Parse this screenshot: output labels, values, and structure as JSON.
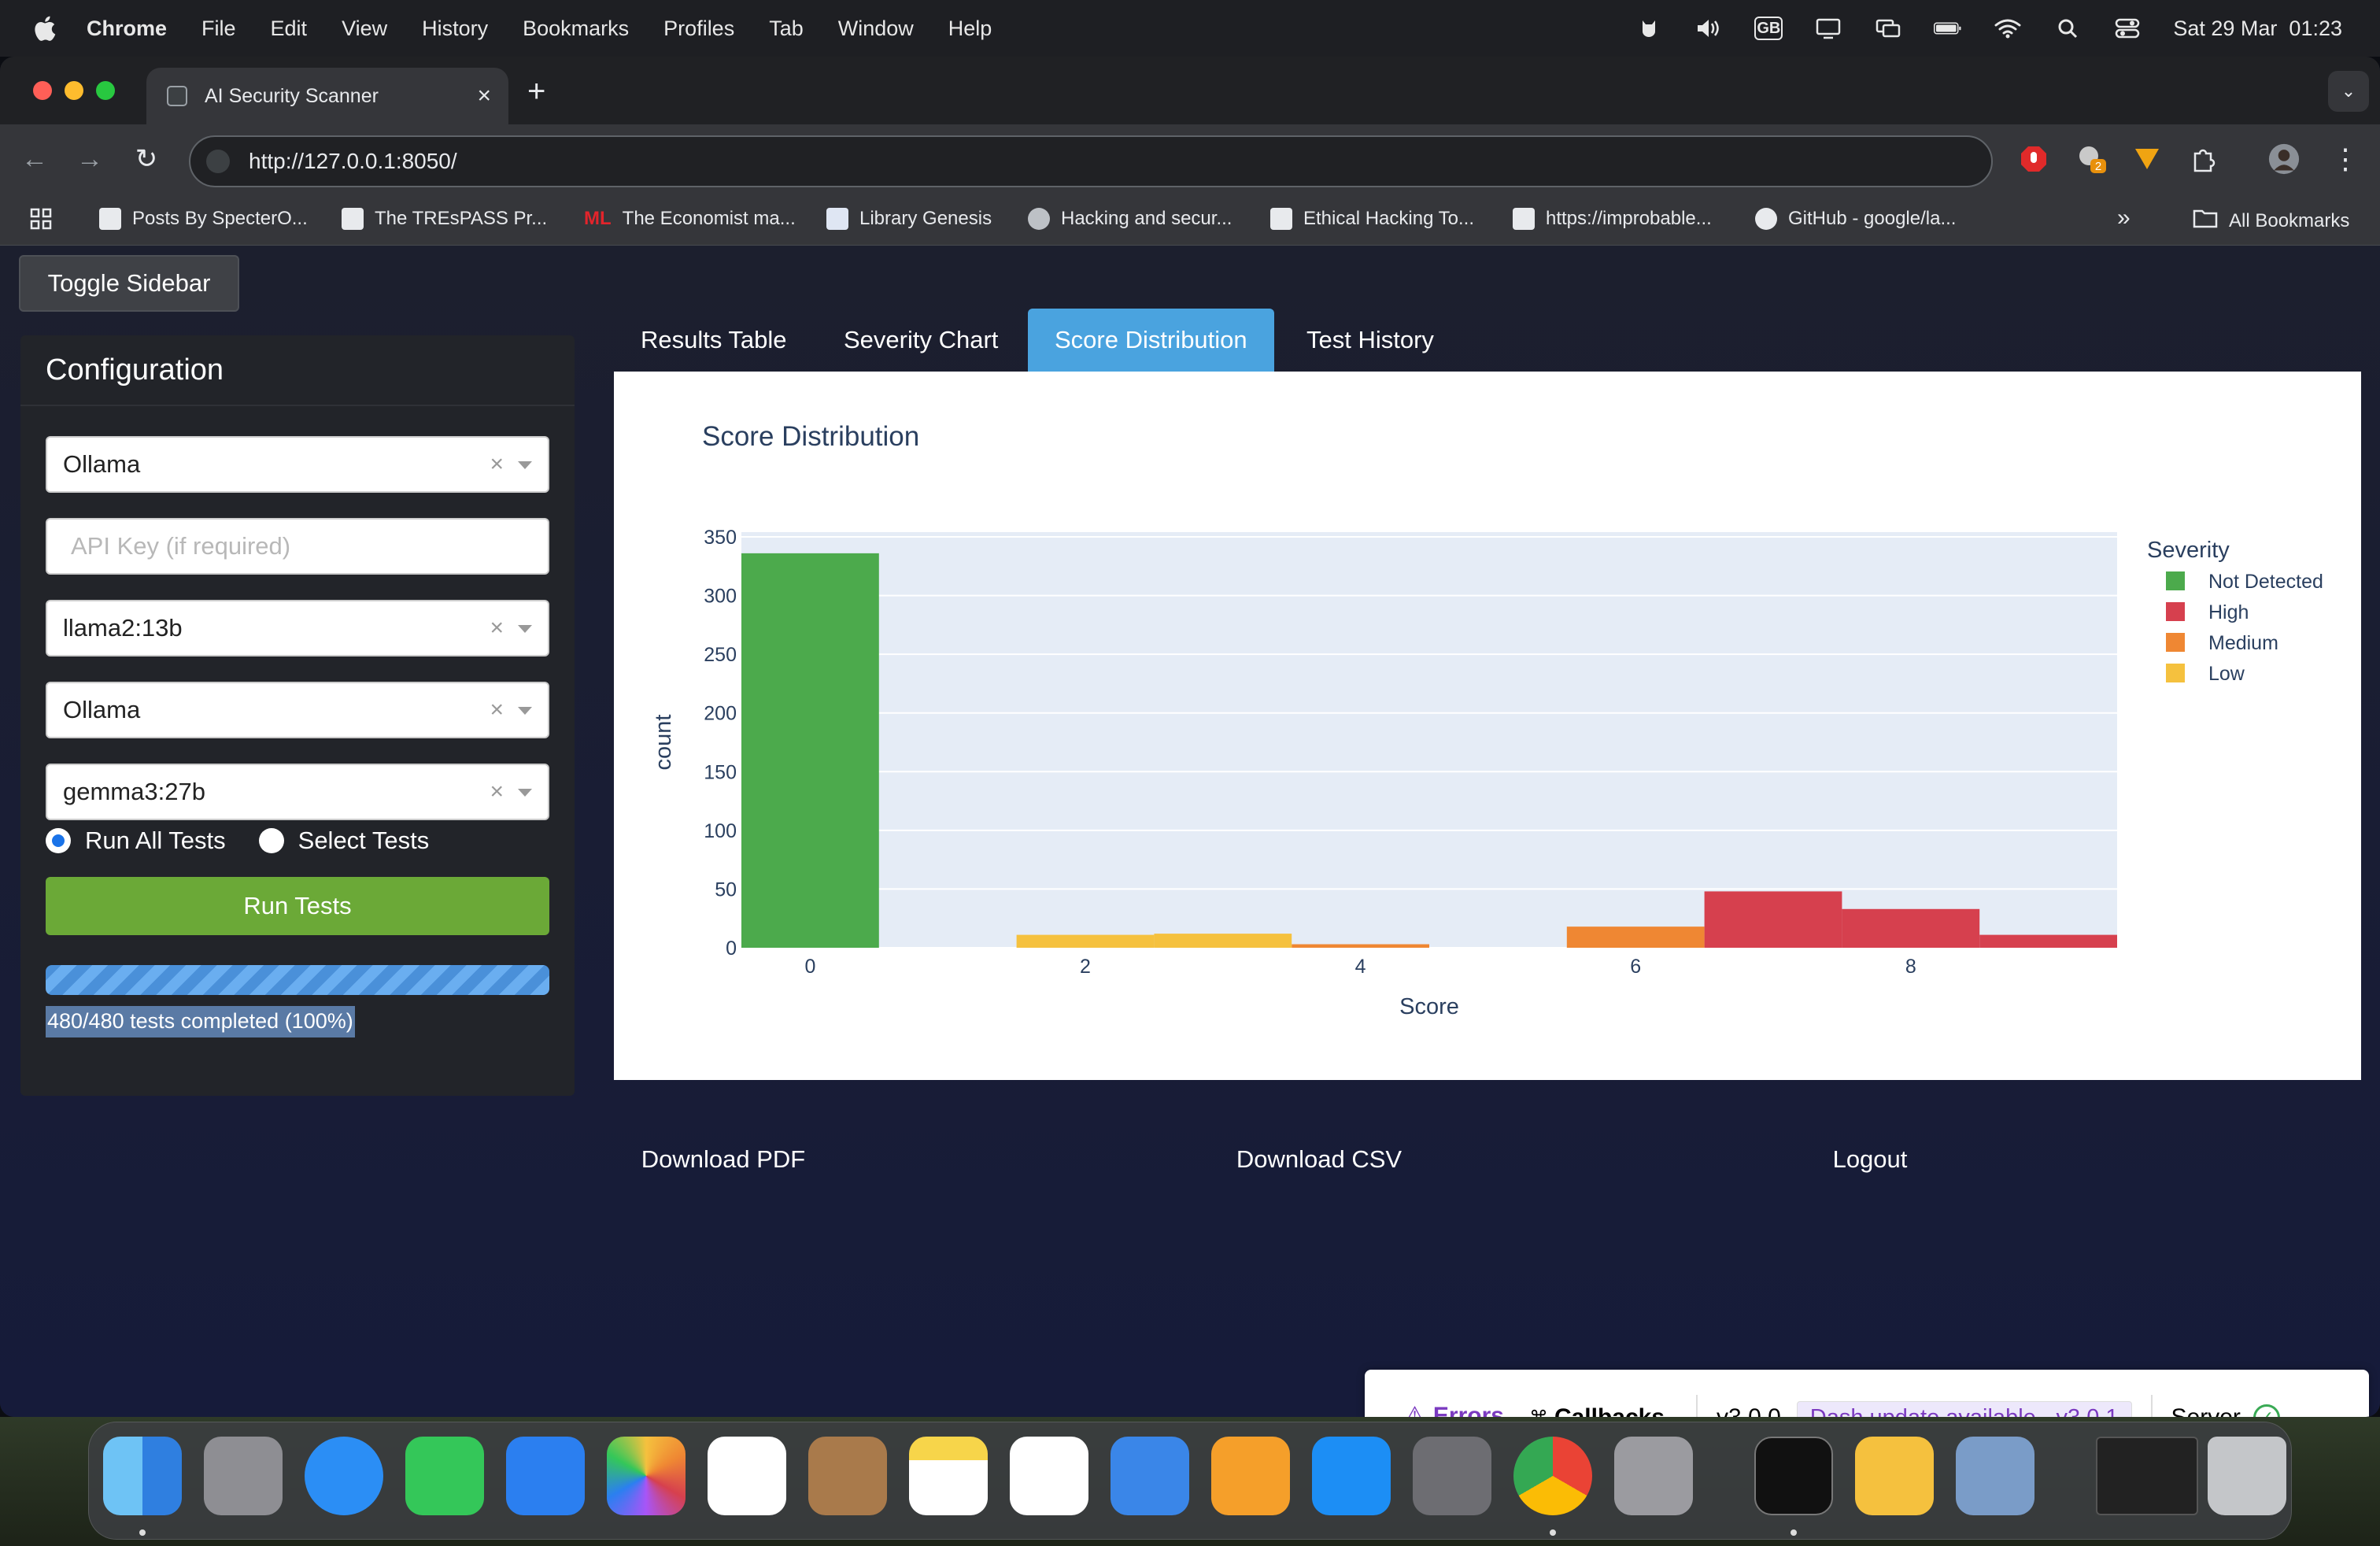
{
  "menubar": {
    "app_name": "Chrome",
    "items": [
      "File",
      "Edit",
      "View",
      "History",
      "Bookmarks",
      "Profiles",
      "Tab",
      "Window",
      "Help"
    ],
    "keyboard": "GB",
    "datetime": "Sat 29 Mar  01:23"
  },
  "browser": {
    "tab_title": "AI Security Scanner",
    "url": "http://127.0.0.1:8050/",
    "extension_badge": "2",
    "bookmarks": [
      "Posts By SpecterO...",
      "The TREsPASS Pr...",
      "The Economist ma...",
      "Library Genesis",
      "Hacking and secur...",
      "Ethical Hacking To...",
      "https://improbable...",
      "GitHub - google/la..."
    ],
    "economist_prefix": "ML",
    "overflow": "»",
    "all_bookmarks": "All Bookmarks"
  },
  "app": {
    "toggle_sidebar": "Toggle Sidebar",
    "sidebar": {
      "title": "Configuration",
      "provider_1": "Ollama",
      "api_key_placeholder": "API Key (if required)",
      "model_1": "llama2:13b",
      "provider_2": "Ollama",
      "model_2": "gemma3:27b",
      "radio_all": "Run All Tests",
      "radio_select": "Select Tests",
      "run_button": "Run Tests",
      "progress_value": 1.0,
      "progress_text": "480/480 tests completed (100%)"
    },
    "tabs": [
      "Results Table",
      "Severity Chart",
      "Score Distribution",
      "Test History"
    ],
    "active_tab": "Score Distribution",
    "buttons": {
      "download_pdf": "Download PDF",
      "download_csv": "Download CSV",
      "logout": "Logout"
    },
    "colors": {
      "pdf": "#4aa3df",
      "csv": "#8e33c9",
      "logout": "#c5251c",
      "run": "#6ba937"
    }
  },
  "chart_data": {
    "type": "bar",
    "title": "Score Distribution",
    "xlabel": "Score",
    "ylabel": "count",
    "xlim": [
      -0.5,
      9.5
    ],
    "ylim": [
      0,
      350
    ],
    "xticks": [
      0,
      2,
      4,
      6,
      8
    ],
    "yticks": [
      0,
      50,
      100,
      150,
      200,
      250,
      300,
      350
    ],
    "bin_width": 1,
    "legend_title": "Severity",
    "legend_position": "right",
    "grid": true,
    "series": [
      {
        "name": "Not Detected",
        "color": "#4caa4c",
        "x": [
          0
        ],
        "values": [
          336
        ]
      },
      {
        "name": "High",
        "color": "#d6404e",
        "x": [
          7,
          8,
          9
        ],
        "values": [
          48,
          33,
          11
        ]
      },
      {
        "name": "Medium",
        "color": "#ef8733",
        "x": [
          4,
          6
        ],
        "values": [
          3,
          18
        ]
      },
      {
        "name": "Low",
        "color": "#f5c13e",
        "x": [
          2,
          3
        ],
        "values": [
          11,
          12
        ]
      }
    ]
  },
  "devtools": {
    "errors": "Errors",
    "callbacks": "Callbacks",
    "version": "v3.0.0",
    "update": "Dash update available - v3.0.1",
    "server": "Server"
  }
}
